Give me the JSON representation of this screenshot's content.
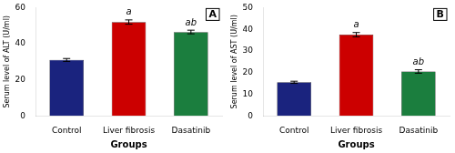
{
  "chart_data": [
    {
      "type": "bar",
      "title": "A",
      "ylabel": "Serum level of ALT (U/ml)",
      "xlabel": "Groups",
      "categories": [
        "Control",
        "Liver fibrosis",
        "Dasatinib"
      ],
      "values": [
        31,
        52,
        46.5
      ],
      "errors": [
        0.8,
        1.2,
        1.0
      ],
      "colors": [
        "#1a237e",
        "#cc0000",
        "#1b7e3e"
      ],
      "ylim": [
        0,
        60
      ],
      "yticks": [
        0,
        20,
        40,
        60
      ],
      "grid": false,
      "annotations": [
        {
          "text": "a",
          "category": "Liver fibrosis"
        },
        {
          "text": "ab",
          "category": "Dasatinib"
        }
      ]
    },
    {
      "type": "bar",
      "title": "B",
      "ylabel": "Serum level of AST (U/ml)",
      "xlabel": "Groups",
      "categories": [
        "Control",
        "Liver fibrosis",
        "Dasatinib"
      ],
      "values": [
        15.5,
        37.5,
        20.5
      ],
      "errors": [
        0.5,
        1.0,
        0.8
      ],
      "colors": [
        "#1a237e",
        "#cc0000",
        "#1b7e3e"
      ],
      "ylim": [
        0,
        50
      ],
      "yticks": [
        0,
        10,
        20,
        30,
        40,
        50
      ],
      "grid": false,
      "annotations": [
        {
          "text": "a",
          "category": "Liver fibrosis"
        },
        {
          "text": "ab",
          "category": "Dasatinib"
        }
      ]
    }
  ]
}
